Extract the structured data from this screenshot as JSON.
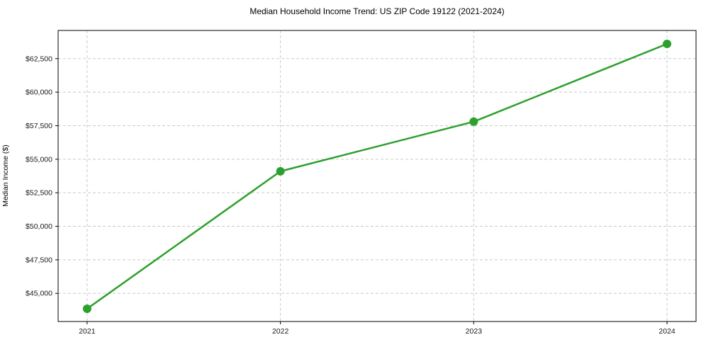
{
  "chart_data": {
    "type": "line",
    "title": "Median Household Income Trend: US ZIP Code 19122 (2021-2024)",
    "xlabel": "",
    "ylabel": "Median Income ($)",
    "x": [
      2021,
      2022,
      2023,
      2024
    ],
    "xtick_labels": [
      "2021",
      "2022",
      "2023",
      "2024"
    ],
    "series": [
      {
        "name": "Median Household Income",
        "values": [
          43850,
          54100,
          57800,
          63600
        ]
      }
    ],
    "yticks": [
      45000,
      47500,
      50000,
      52500,
      55000,
      57500,
      60000,
      62500
    ],
    "ytick_labels": [
      "$45,000",
      "$47,500",
      "$50,000",
      "$52,500",
      "$55,000",
      "$57,500",
      "$60,000",
      "$62,500"
    ],
    "xlim": [
      2020.85,
      2024.15
    ],
    "ylim": [
      42900,
      64600
    ],
    "grid": {
      "show": true,
      "style": "dashed",
      "axes": "both"
    },
    "legend": "none",
    "colors": {
      "line": "#2ca02c",
      "marker": "#2ca02c",
      "grid": "#c9c9c9",
      "spine": "#000000",
      "tick_text": "#1a1a1a"
    }
  }
}
